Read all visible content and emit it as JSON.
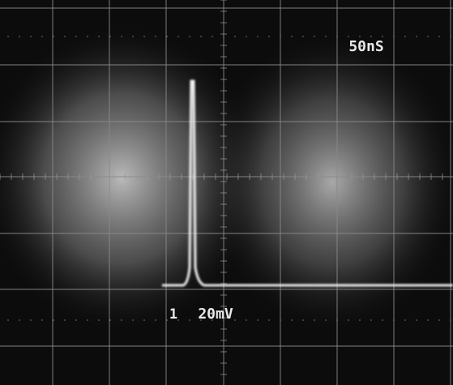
{
  "screen": {
    "timebase": "50nS",
    "channel": "1",
    "volts_per_div": "20mV"
  }
}
